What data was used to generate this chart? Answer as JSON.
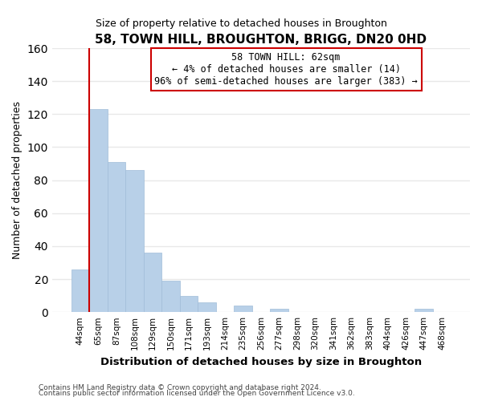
{
  "title": "58, TOWN HILL, BROUGHTON, BRIGG, DN20 0HD",
  "subtitle": "Size of property relative to detached houses in Broughton",
  "xlabel": "Distribution of detached houses by size in Broughton",
  "ylabel": "Number of detached properties",
  "bar_labels": [
    "44sqm",
    "65sqm",
    "87sqm",
    "108sqm",
    "129sqm",
    "150sqm",
    "171sqm",
    "193sqm",
    "214sqm",
    "235sqm",
    "256sqm",
    "277sqm",
    "298sqm",
    "320sqm",
    "341sqm",
    "362sqm",
    "383sqm",
    "404sqm",
    "426sqm",
    "447sqm",
    "468sqm"
  ],
  "bar_values": [
    26,
    123,
    91,
    86,
    36,
    19,
    10,
    6,
    0,
    4,
    0,
    2,
    0,
    0,
    0,
    0,
    0,
    0,
    0,
    2,
    0
  ],
  "bar_color": "#b8d0e8",
  "bar_edge_color": "#a0bcd8",
  "ylim": [
    0,
    160
  ],
  "yticks": [
    0,
    20,
    40,
    60,
    80,
    100,
    120,
    140,
    160
  ],
  "marker_color": "#cc0000",
  "annotation_title": "58 TOWN HILL: 62sqm",
  "annotation_line1": "← 4% of detached houses are smaller (14)",
  "annotation_line2": "96% of semi-detached houses are larger (383) →",
  "footer_line1": "Contains HM Land Registry data © Crown copyright and database right 2024.",
  "footer_line2": "Contains public sector information licensed under the Open Government Licence v3.0.",
  "background_color": "#ffffff",
  "plot_background_color": "#ffffff",
  "grid_color": "#e8e8e8",
  "annotation_box_color": "#ffffff",
  "annotation_box_edge": "#cc0000",
  "title_fontsize": 11,
  "subtitle_fontsize": 9
}
